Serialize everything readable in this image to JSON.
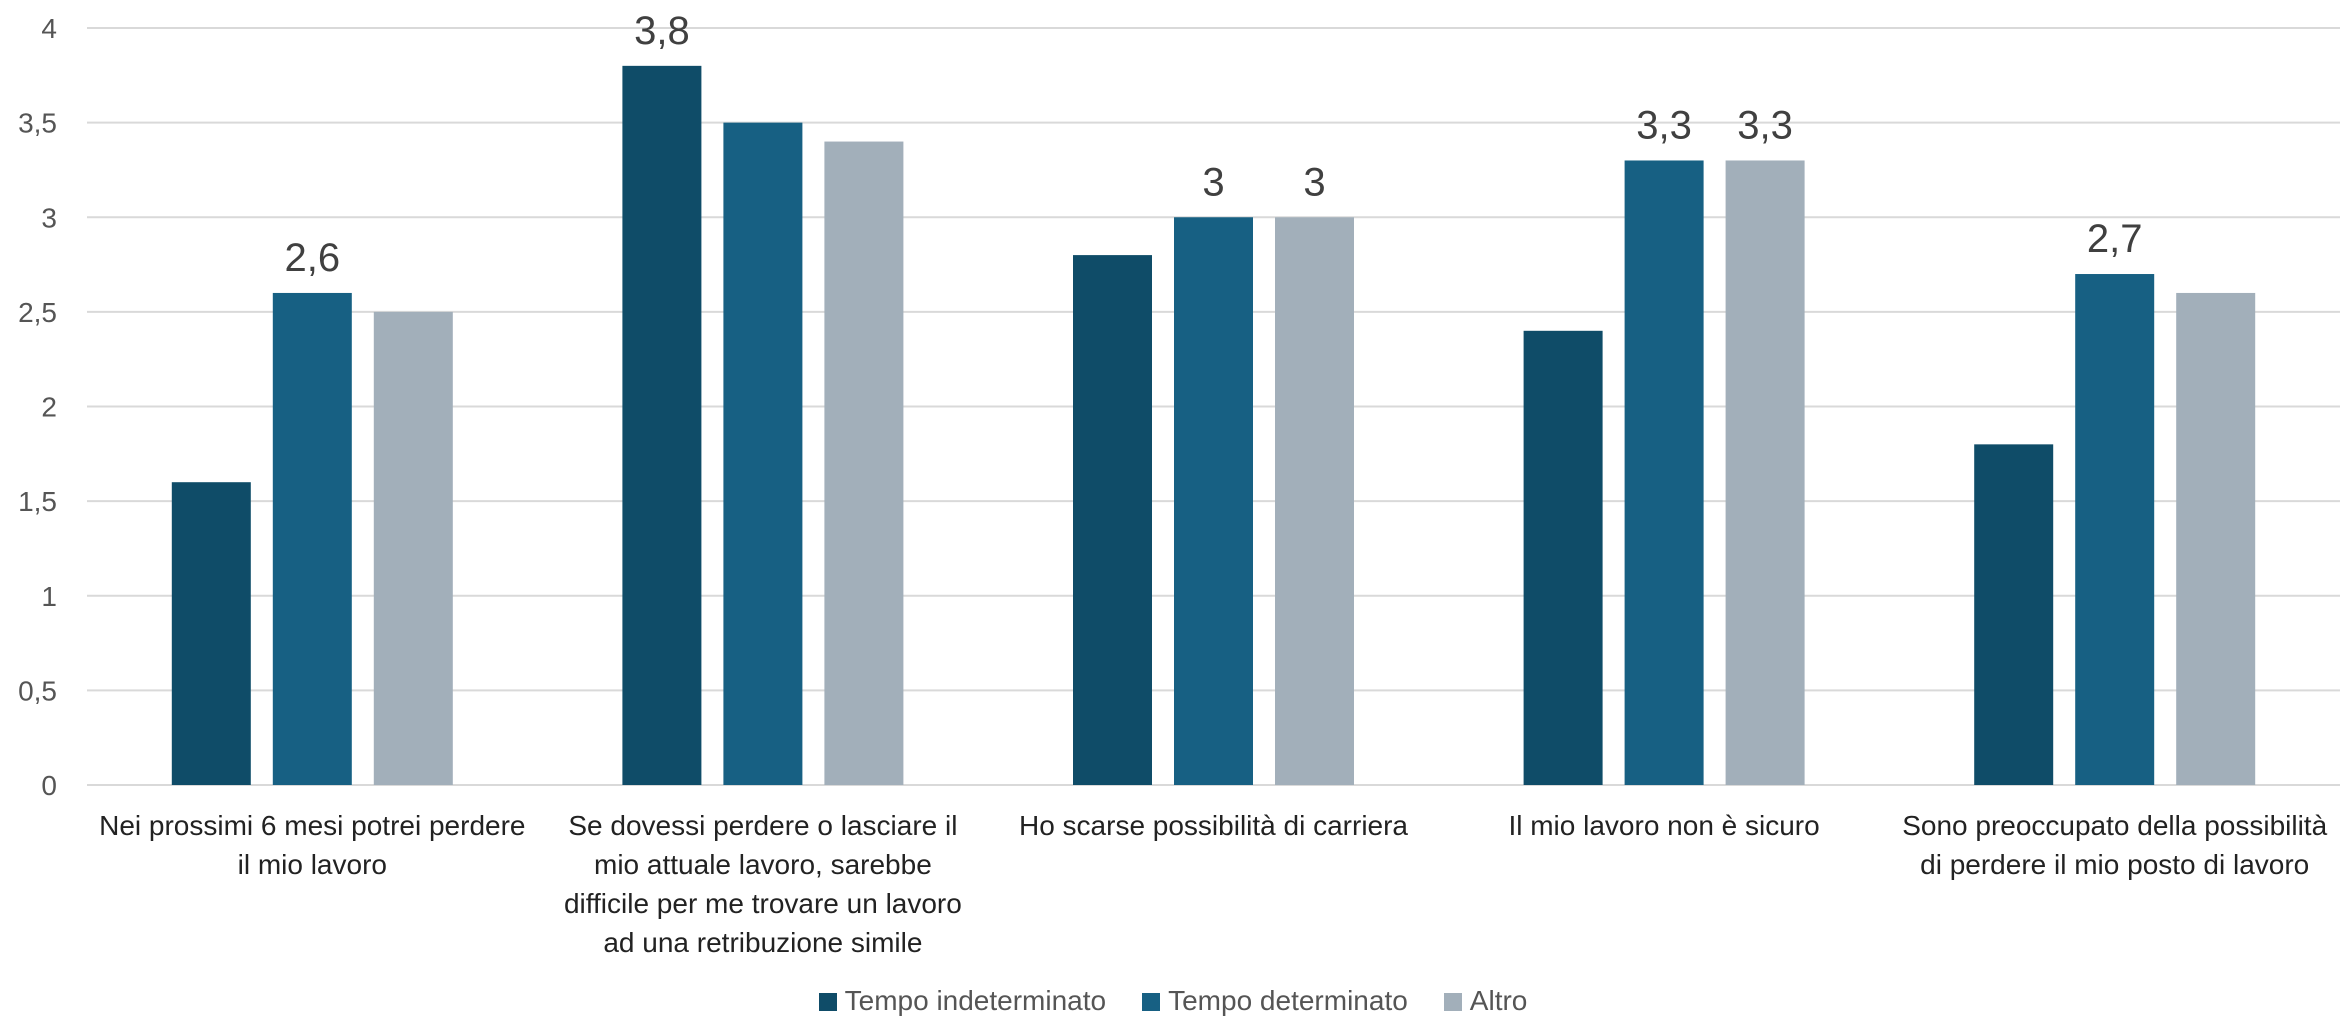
{
  "chart_data": {
    "type": "bar",
    "categories": [
      "Nei prossimi 6 mesi potrei perdere il mio lavoro",
      "Se dovessi perdere o lasciare il mio attuale lavoro, sarebbe difficile per me trovare un lavoro ad una retribuzione simile",
      "Ho scarse possibilità di carriera",
      "Il mio lavoro non è sicuro",
      "Sono preoccupato della possibilità di perdere il mio posto di lavoro"
    ],
    "series": [
      {
        "name": "Tempo indeterminato",
        "color": "#0f4c68",
        "values": [
          1.6,
          3.8,
          2.8,
          2.4,
          1.8
        ],
        "value_labels": [
          null,
          "3,8",
          null,
          null,
          null
        ]
      },
      {
        "name": "Tempo determinato",
        "color": "#176083",
        "values": [
          2.6,
          3.5,
          3.0,
          3.3,
          2.7
        ],
        "value_labels": [
          "2,6",
          null,
          "3",
          "3,3",
          "2,7"
        ]
      },
      {
        "name": "Altro",
        "color": "#a2afba",
        "values": [
          2.5,
          3.4,
          3.0,
          3.3,
          2.6
        ],
        "value_labels": [
          null,
          null,
          "3",
          "3,3",
          null
        ]
      }
    ],
    "ylim": [
      0,
      4
    ],
    "yticks": [
      0,
      {
        "value": 0.5,
        "label": "0,5"
      },
      1,
      {
        "value": 1.5,
        "label": "1,5"
      },
      2,
      {
        "value": 2.5,
        "label": "2,5"
      },
      3,
      {
        "value": 3.5,
        "label": "3,5"
      },
      4
    ],
    "grid": true,
    "legend": "bottom"
  }
}
